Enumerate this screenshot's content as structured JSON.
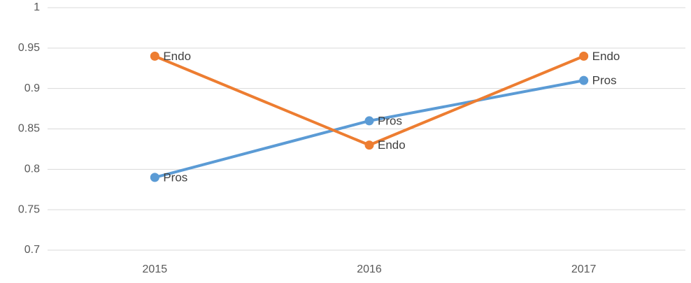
{
  "chart_data": {
    "type": "line",
    "categories": [
      "2015",
      "2016",
      "2017"
    ],
    "series": [
      {
        "name": "Pros",
        "color": "#5b9bd5",
        "values": [
          0.79,
          0.86,
          0.91
        ]
      },
      {
        "name": "Endo",
        "color": "#ed7d31",
        "values": [
          0.94,
          0.83,
          0.94
        ]
      }
    ],
    "ylim": [
      0.7,
      1
    ],
    "yticks": [
      0.7,
      0.75,
      0.8,
      0.85,
      0.9,
      0.95,
      1
    ],
    "grid": true,
    "data_labels": "series_name"
  }
}
